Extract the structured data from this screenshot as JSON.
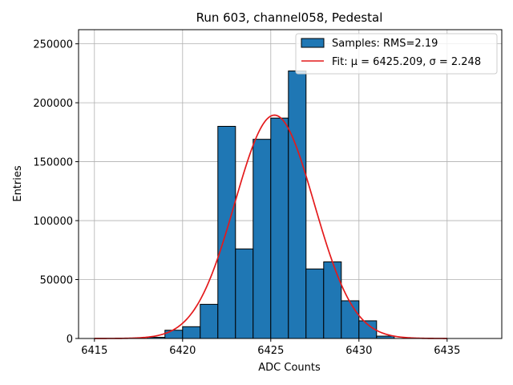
{
  "chart_data": {
    "type": "bar",
    "title": "Run 603, channel058, Pedestal",
    "xlabel": "ADC Counts",
    "ylabel": "Entries",
    "xlim": [
      6414.1,
      6438.1
    ],
    "ylim": [
      0,
      262000
    ],
    "xticks": [
      6415,
      6420,
      6425,
      6430,
      6435
    ],
    "yticks": [
      0,
      50000,
      100000,
      150000,
      200000,
      250000
    ],
    "grid": true,
    "legend_position": "top-right",
    "histogram": {
      "name": "Samples: RMS=2.19",
      "color": "#1f77b4",
      "edge_color": "#000000",
      "bin_width": 1,
      "bins": [
        {
          "left": 6418,
          "value": 1000
        },
        {
          "left": 6419,
          "value": 7000
        },
        {
          "left": 6420,
          "value": 10000
        },
        {
          "left": 6421,
          "value": 29000
        },
        {
          "left": 6422,
          "value": 180000
        },
        {
          "left": 6423,
          "value": 76000
        },
        {
          "left": 6424,
          "value": 169000
        },
        {
          "left": 6425,
          "value": 187000
        },
        {
          "left": 6426,
          "value": 227000
        },
        {
          "left": 6427,
          "value": 59000
        },
        {
          "left": 6428,
          "value": 65000
        },
        {
          "left": 6429,
          "value": 32000
        },
        {
          "left": 6430,
          "value": 15000
        },
        {
          "left": 6431,
          "value": 2000
        }
      ]
    },
    "fit": {
      "name": "Fit: μ = 6425.209, σ = 2.248",
      "color": "#e41a1c",
      "mu": 6425.209,
      "sigma": 2.248,
      "amplitude": 189500,
      "x_range": [
        6415,
        6435
      ]
    }
  }
}
